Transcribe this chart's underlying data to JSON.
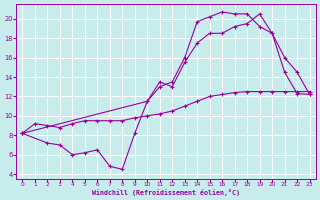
{
  "xlabel": "Windchill (Refroidissement éolien,°C)",
  "bg_color": "#c8ecec",
  "line_color": "#990099",
  "grid_color": "#ffffff",
  "xlim": [
    -0.5,
    23.5
  ],
  "ylim": [
    3.5,
    21.5
  ],
  "yticks": [
    4,
    6,
    8,
    10,
    12,
    14,
    16,
    18,
    20
  ],
  "xticks": [
    0,
    1,
    2,
    3,
    4,
    5,
    6,
    7,
    8,
    9,
    10,
    11,
    12,
    13,
    14,
    15,
    16,
    17,
    18,
    19,
    20,
    21,
    22,
    23
  ],
  "line1_x": [
    0,
    10,
    11,
    12,
    13,
    14,
    15,
    16,
    17,
    18,
    19,
    20,
    21,
    22,
    23
  ],
  "line1_y": [
    8.2,
    11.5,
    13.0,
    13.5,
    16.0,
    19.7,
    20.2,
    20.7,
    20.5,
    20.5,
    19.2,
    18.5,
    14.5,
    12.3,
    12.2
  ],
  "line2_x": [
    0,
    1,
    2,
    3,
    4,
    5,
    6,
    7,
    8,
    9,
    10,
    11,
    12,
    13,
    14,
    15,
    16,
    17,
    18,
    19,
    20,
    21,
    22,
    23
  ],
  "line2_y": [
    8.2,
    9.2,
    9.0,
    8.8,
    9.2,
    9.5,
    9.5,
    9.5,
    9.5,
    9.8,
    10.0,
    10.2,
    10.5,
    11.0,
    11.5,
    12.0,
    12.2,
    12.4,
    12.5,
    12.5,
    12.5,
    12.5,
    12.5,
    12.5
  ],
  "line3_x": [
    0,
    2,
    3,
    4,
    5,
    6,
    7,
    8,
    9,
    10,
    11,
    12,
    13,
    14,
    15,
    16,
    17,
    18,
    19,
    20,
    21,
    22,
    23
  ],
  "line3_y": [
    8.2,
    7.2,
    7.0,
    6.0,
    6.2,
    6.5,
    4.8,
    4.5,
    8.2,
    11.5,
    13.5,
    13.0,
    15.5,
    17.5,
    18.5,
    18.5,
    19.2,
    19.5,
    20.5,
    18.5,
    16.0,
    14.5,
    12.2
  ]
}
